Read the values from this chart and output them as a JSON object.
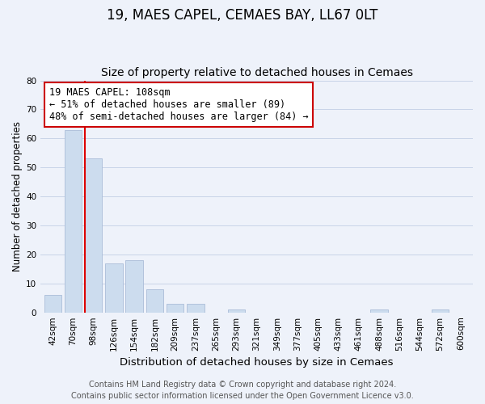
{
  "title": "19, MAES CAPEL, CEMAES BAY, LL67 0LT",
  "subtitle": "Size of property relative to detached houses in Cemaes",
  "xlabel": "Distribution of detached houses by size in Cemaes",
  "ylabel": "Number of detached properties",
  "bar_labels": [
    "42sqm",
    "70sqm",
    "98sqm",
    "126sqm",
    "154sqm",
    "182sqm",
    "209sqm",
    "237sqm",
    "265sqm",
    "293sqm",
    "321sqm",
    "349sqm",
    "377sqm",
    "405sqm",
    "433sqm",
    "461sqm",
    "488sqm",
    "516sqm",
    "544sqm",
    "572sqm",
    "600sqm"
  ],
  "bar_values": [
    6,
    63,
    53,
    17,
    18,
    8,
    3,
    3,
    0,
    1,
    0,
    0,
    0,
    0,
    0,
    0,
    1,
    0,
    0,
    1,
    0
  ],
  "bar_color": "#ccdcee",
  "bar_edge_color": "#aabdd8",
  "vline_index": 2,
  "vline_color": "#dd0000",
  "annotation_text": "19 MAES CAPEL: 108sqm\n← 51% of detached houses are smaller (89)\n48% of semi-detached houses are larger (84) →",
  "annotation_box_color": "#ffffff",
  "annotation_box_edge": "#cc0000",
  "ylim": [
    0,
    80
  ],
  "yticks": [
    0,
    10,
    20,
    30,
    40,
    50,
    60,
    70,
    80
  ],
  "footer_line1": "Contains HM Land Registry data © Crown copyright and database right 2024.",
  "footer_line2": "Contains public sector information licensed under the Open Government Licence v3.0.",
  "bg_color": "#eef2fa",
  "title_fontsize": 12,
  "subtitle_fontsize": 10,
  "xlabel_fontsize": 9.5,
  "ylabel_fontsize": 8.5,
  "tick_fontsize": 7.5,
  "footer_fontsize": 7,
  "annotation_fontsize": 8.5
}
